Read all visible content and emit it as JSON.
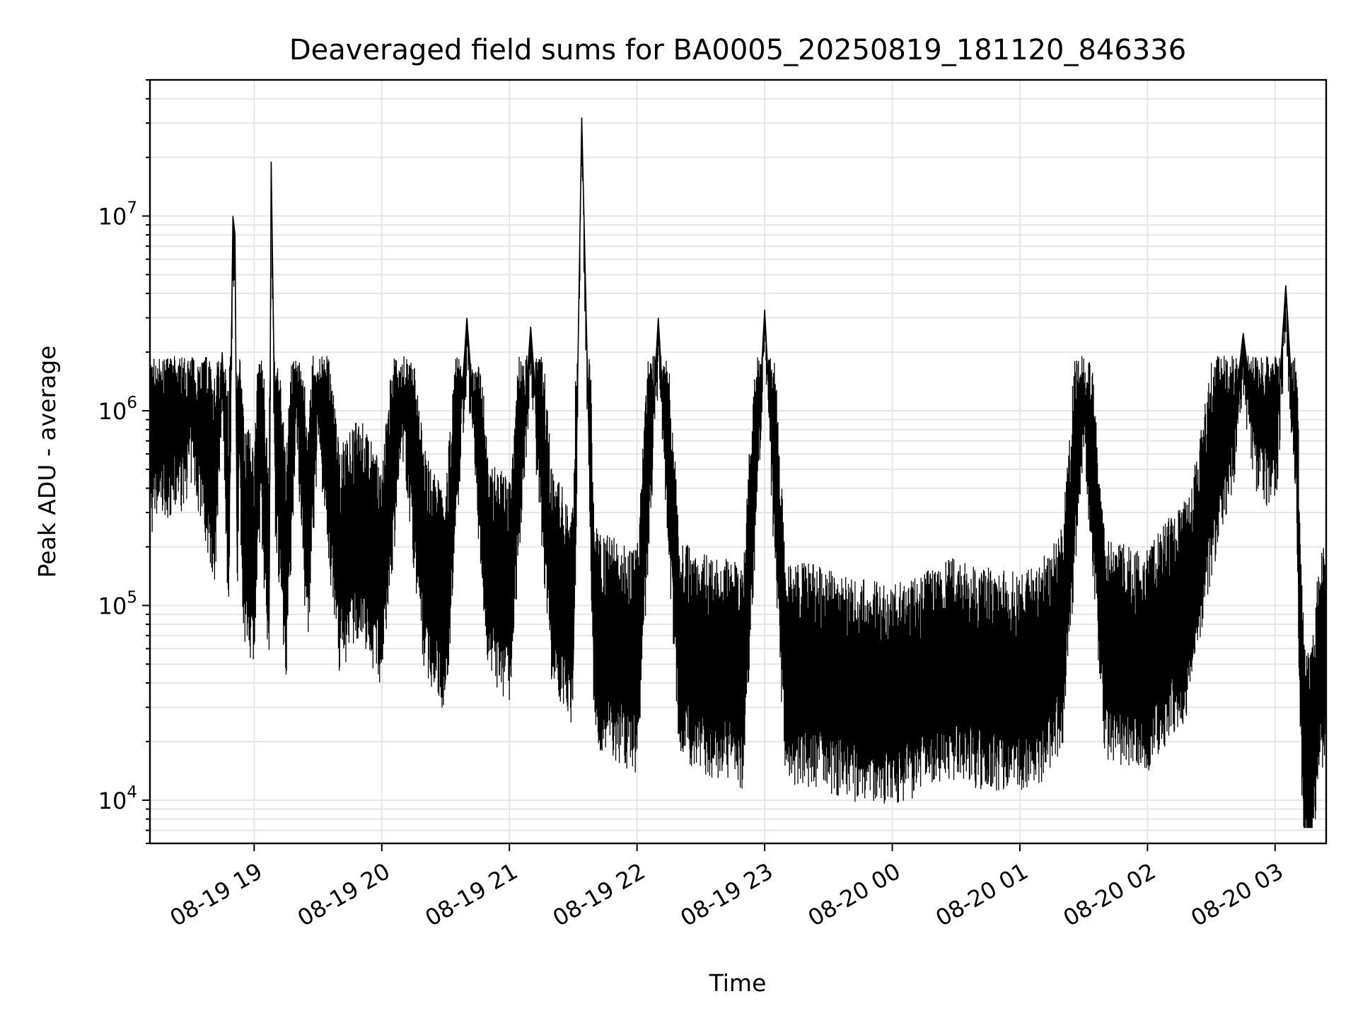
{
  "chart_data": {
    "type": "line",
    "title": "Deaveraged field sums for BA0005_20250819_181120_846336",
    "xlabel": "Time",
    "ylabel": "Peak ADU - average",
    "yscale": "log",
    "ylim": [
      6000,
      50000000
    ],
    "xlim": [
      "2025-08-19 18:11",
      "2025-08-20 03:24"
    ],
    "grid": true,
    "line_color": "#000000",
    "x_ticks": [
      {
        "value": "2025-08-19 19:00",
        "label": "08-19 19"
      },
      {
        "value": "2025-08-19 20:00",
        "label": "08-19 20"
      },
      {
        "value": "2025-08-19 21:00",
        "label": "08-19 21"
      },
      {
        "value": "2025-08-19 22:00",
        "label": "08-19 22"
      },
      {
        "value": "2025-08-19 23:00",
        "label": "08-19 23"
      },
      {
        "value": "2025-08-20 00:00",
        "label": "08-20 00"
      },
      {
        "value": "2025-08-20 01:00",
        "label": "08-20 01"
      },
      {
        "value": "2025-08-20 02:00",
        "label": "08-20 02"
      },
      {
        "value": "2025-08-20 03:00",
        "label": "08-20 03"
      }
    ],
    "y_ticks": [
      {
        "value": 10000,
        "base": "10",
        "exp": "4"
      },
      {
        "value": 100000,
        "base": "10",
        "exp": "5"
      },
      {
        "value": 1000000,
        "base": "10",
        "exp": "6"
      },
      {
        "value": 10000000,
        "base": "10",
        "exp": "7"
      }
    ],
    "series": [
      {
        "x": [
          "2025-08-19 18:11",
          "2025-08-19 18:15",
          "2025-08-19 18:20",
          "2025-08-19 18:25",
          "2025-08-19 18:27",
          "2025-08-19 18:30",
          "2025-08-19 18:35",
          "2025-08-19 18:38",
          "2025-08-19 18:40",
          "2025-08-19 18:42",
          "2025-08-19 18:45",
          "2025-08-19 18:48",
          "2025-08-19 18:50",
          "2025-08-19 18:51",
          "2025-08-19 18:52",
          "2025-08-19 18:53",
          "2025-08-19 18:55",
          "2025-08-19 18:58",
          "2025-08-19 19:00",
          "2025-08-19 19:03",
          "2025-08-19 19:07",
          "2025-08-19 19:08",
          "2025-08-19 19:10",
          "2025-08-19 19:15",
          "2025-08-19 19:20",
          "2025-08-19 19:25",
          "2025-08-19 19:30",
          "2025-08-19 19:40",
          "2025-08-19 19:50",
          "2025-08-19 20:00",
          "2025-08-19 20:10",
          "2025-08-19 20:20",
          "2025-08-19 20:30",
          "2025-08-19 20:40",
          "2025-08-19 20:50",
          "2025-08-19 21:00",
          "2025-08-19 21:10",
          "2025-08-19 21:20",
          "2025-08-19 21:30",
          "2025-08-19 21:34",
          "2025-08-19 21:40",
          "2025-08-19 21:50",
          "2025-08-19 22:00",
          "2025-08-19 22:10",
          "2025-08-19 22:20",
          "2025-08-19 22:30",
          "2025-08-19 22:40",
          "2025-08-19 22:50",
          "2025-08-19 23:00",
          "2025-08-19 23:10",
          "2025-08-19 23:20",
          "2025-08-19 23:30",
          "2025-08-19 23:40",
          "2025-08-19 23:50",
          "2025-08-20 00:00",
          "2025-08-20 00:10",
          "2025-08-20 00:20",
          "2025-08-20 00:30",
          "2025-08-20 00:40",
          "2025-08-20 00:50",
          "2025-08-20 01:00",
          "2025-08-20 01:10",
          "2025-08-20 01:20",
          "2025-08-20 01:30",
          "2025-08-20 01:40",
          "2025-08-20 01:50",
          "2025-08-20 02:00",
          "2025-08-20 02:10",
          "2025-08-20 02:20",
          "2025-08-20 02:30",
          "2025-08-20 02:40",
          "2025-08-20 02:45",
          "2025-08-20 02:50",
          "2025-08-20 02:55",
          "2025-08-20 03:00",
          "2025-08-20 03:05",
          "2025-08-20 03:08",
          "2025-08-20 03:10",
          "2025-08-20 03:12",
          "2025-08-20 03:14",
          "2025-08-20 03:17",
          "2025-08-20 03:20",
          "2025-08-20 03:24"
        ],
        "values": [
          480000,
          560000,
          620000,
          650000,
          700000,
          900000,
          600000,
          400000,
          320000,
          280000,
          2000000,
          150000,
          10000000,
          8000000,
          200000,
          900000,
          150000,
          120000,
          100000,
          600000,
          80000,
          19000000,
          500000,
          90000,
          1400000,
          120000,
          1300000,
          100000,
          150000,
          80000,
          1200000,
          100000,
          60000,
          3000000,
          90000,
          70000,
          2700000,
          80000,
          50000,
          32000000,
          40000,
          35000,
          30000,
          3000000,
          35000,
          30000,
          28000,
          25000,
          3300000,
          25000,
          26000,
          24000,
          22000,
          21000,
          20000,
          22000,
          25000,
          28000,
          25000,
          24000,
          23000,
          27000,
          40000,
          1300000,
          35000,
          32000,
          30000,
          45000,
          60000,
          300000,
          800000,
          2500000,
          900000,
          700000,
          600000,
          4400000,
          1200000,
          600000,
          30000,
          10000,
          9000,
          25000,
          35000
        ]
      }
    ]
  }
}
